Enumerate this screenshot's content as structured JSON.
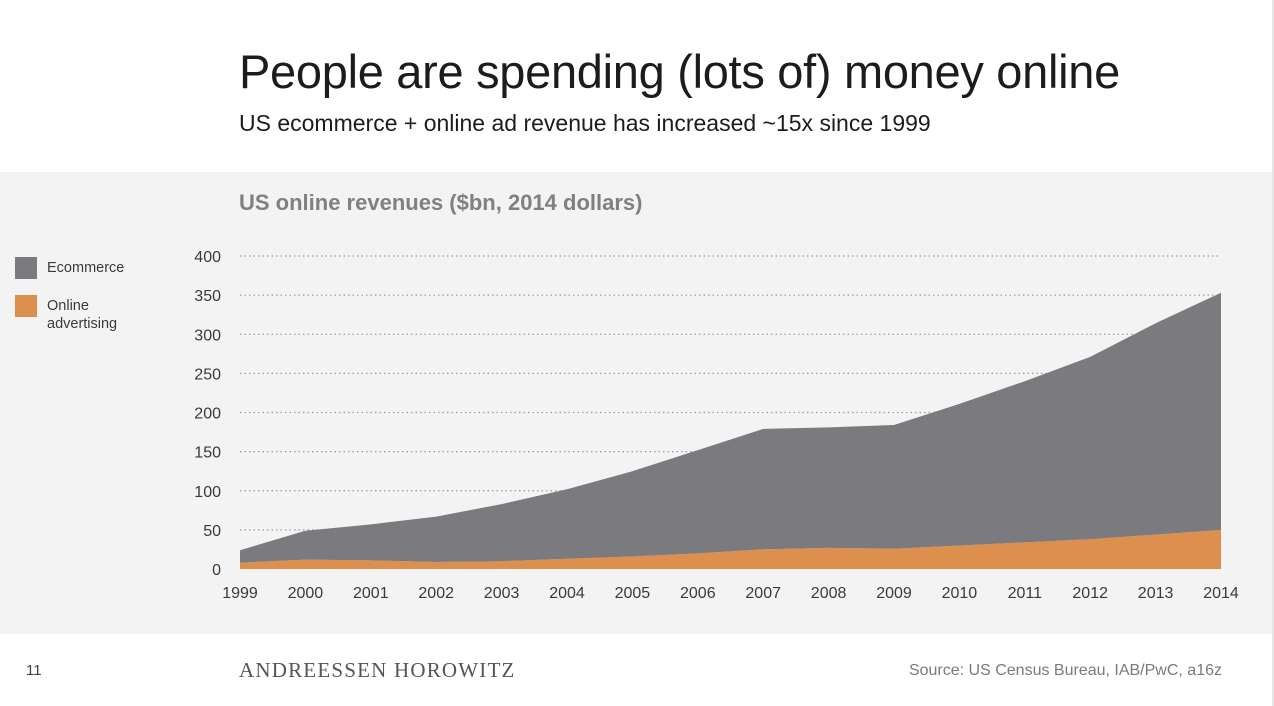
{
  "slide": {
    "title": "People are spending (lots of) money online",
    "subtitle": "US ecommerce + online ad revenue has increased ~15x since 1999",
    "page_number": "11",
    "brand": "ANDREESSEN HOROWITZ",
    "source": "Source: US Census Bureau, IAB/PwC, a16z"
  },
  "chart_data": {
    "type": "area",
    "stacked": true,
    "title": "US online revenues ($bn, 2014 dollars)",
    "xlabel": "",
    "ylabel": "",
    "categories": [
      "1999",
      "2000",
      "2001",
      "2002",
      "2003",
      "2004",
      "2005",
      "2006",
      "2007",
      "2008",
      "2009",
      "2010",
      "2011",
      "2012",
      "2013",
      "2014"
    ],
    "ylim": [
      0,
      400
    ],
    "yticks": [
      0,
      50,
      100,
      150,
      200,
      250,
      300,
      350,
      400
    ],
    "grid": true,
    "legend_placement": "left",
    "series": [
      {
        "name": "Online advertising",
        "color": "#dd8f4d",
        "values": [
          8,
          12,
          11,
          9,
          10,
          13,
          16,
          20,
          25,
          27,
          26,
          30,
          34,
          38,
          44,
          50
        ]
      },
      {
        "name": "Ecommerce",
        "color": "#7b7a7e",
        "values": [
          16,
          37,
          46,
          58,
          73,
          89,
          109,
          132,
          154,
          154,
          158,
          181,
          206,
          233,
          270,
          303
        ]
      }
    ]
  },
  "legend": [
    {
      "label": "Ecommerce",
      "color": "#7b7a7e"
    },
    {
      "label": "Online advertising",
      "color": "#dd8f4d"
    }
  ],
  "colors": {
    "panel_bg": "#f3f3f4",
    "grid": "#9a9a9a",
    "tick_text": "#3a3a3a"
  }
}
